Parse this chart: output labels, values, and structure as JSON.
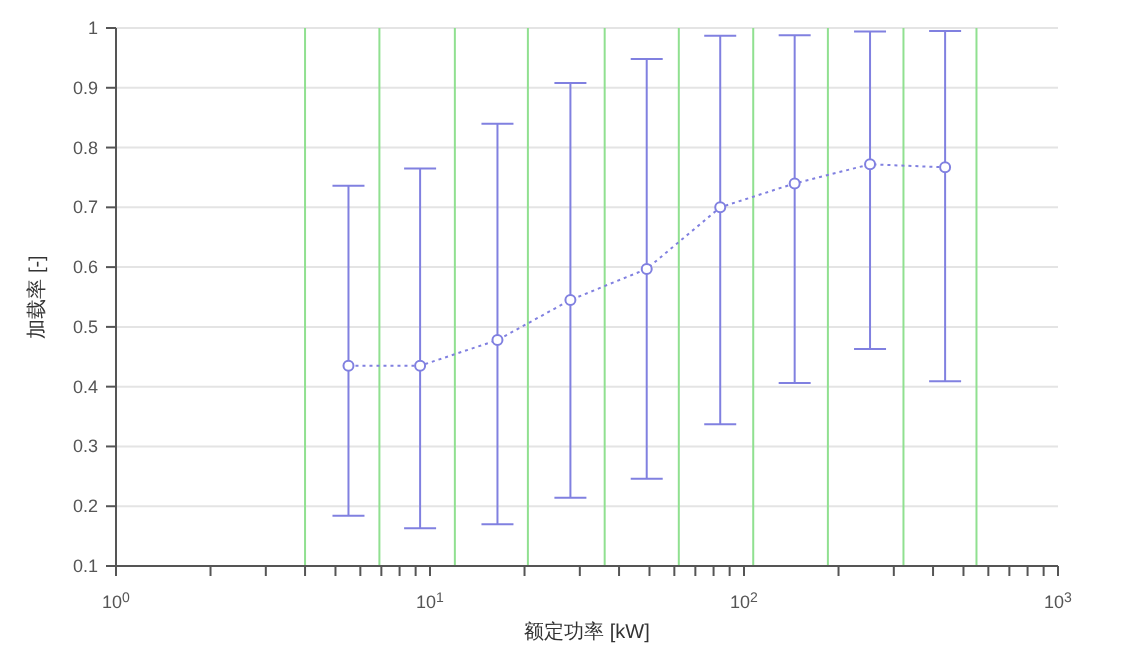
{
  "chart_data": {
    "type": "line",
    "xlabel": "额定功率 [kW]",
    "ylabel": "加载率 [-]",
    "log": "x",
    "grid": "y",
    "marker": "circle",
    "line_style": "dotted",
    "xlim": [
      1,
      1000
    ],
    "xticks": [
      {
        "value": 1,
        "label": "10$^{0}$"
      },
      {
        "value": 2,
        "label": null
      },
      {
        "value": 3,
        "label": null
      },
      {
        "value": 4,
        "label": null
      },
      {
        "value": 5,
        "label": null
      },
      {
        "value": 6,
        "label": null
      },
      {
        "value": 7,
        "label": null
      },
      {
        "value": 8,
        "label": null
      },
      {
        "value": 9,
        "label": null
      },
      {
        "value": 10,
        "label": "10$^{1}$"
      },
      {
        "value": 20,
        "label": null
      },
      {
        "value": 30,
        "label": null
      },
      {
        "value": 40,
        "label": null
      },
      {
        "value": 50,
        "label": null
      },
      {
        "value": 60,
        "label": null
      },
      {
        "value": 70,
        "label": null
      },
      {
        "value": 80,
        "label": null
      },
      {
        "value": 90,
        "label": null
      },
      {
        "value": 100,
        "label": "10$^{2}$"
      },
      {
        "value": 200,
        "label": null
      },
      {
        "value": 300,
        "label": null
      },
      {
        "value": 400,
        "label": null
      },
      {
        "value": 500,
        "label": null
      },
      {
        "value": 600,
        "label": null
      },
      {
        "value": 700,
        "label": null
      },
      {
        "value": 800,
        "label": null
      },
      {
        "value": 900,
        "label": null
      },
      {
        "value": 1000,
        "label": "10$^{3}$"
      }
    ],
    "ylim": [
      0.1,
      1
    ],
    "yticks": [
      0.1,
      0.2,
      0.3,
      0.4,
      0.5,
      0.6,
      0.7,
      0.8,
      0.9,
      1
    ],
    "x": [
      5.5,
      9.3,
      16.4,
      28,
      49,
      84,
      145,
      252,
      437
    ],
    "series": [
      {
        "color": "#8080e0",
        "values": [
          0.435,
          0.435,
          0.478,
          0.545,
          0.597,
          0.7,
          0.74,
          0.772,
          0.767
        ],
        "errors": [
          [
            0.184,
            0.736
          ],
          [
            0.163,
            0.765
          ],
          [
            0.17,
            0.84
          ],
          [
            0.214,
            0.908
          ],
          [
            0.246,
            0.948
          ],
          [
            0.337,
            0.987
          ],
          [
            0.406,
            0.988
          ],
          [
            0.463,
            0.994
          ],
          [
            0.409,
            0.995
          ]
        ]
      }
    ],
    "ref_lines": [
      {
        "axis": "x",
        "value": 4,
        "color": "#90e090"
      },
      {
        "axis": "x",
        "value": 6.9,
        "color": "#90e090"
      },
      {
        "axis": "x",
        "value": 12,
        "color": "#90e090"
      },
      {
        "axis": "x",
        "value": 20.5,
        "color": "#90e090"
      },
      {
        "axis": "x",
        "value": 36,
        "color": "#90e090"
      },
      {
        "axis": "x",
        "value": 62,
        "color": "#90e090"
      },
      {
        "axis": "x",
        "value": 107,
        "color": "#90e090"
      },
      {
        "axis": "x",
        "value": 185,
        "color": "#90e090"
      },
      {
        "axis": "x",
        "value": 322,
        "color": "#90e090"
      },
      {
        "axis": "x",
        "value": 550,
        "color": "#90e090"
      }
    ]
  }
}
